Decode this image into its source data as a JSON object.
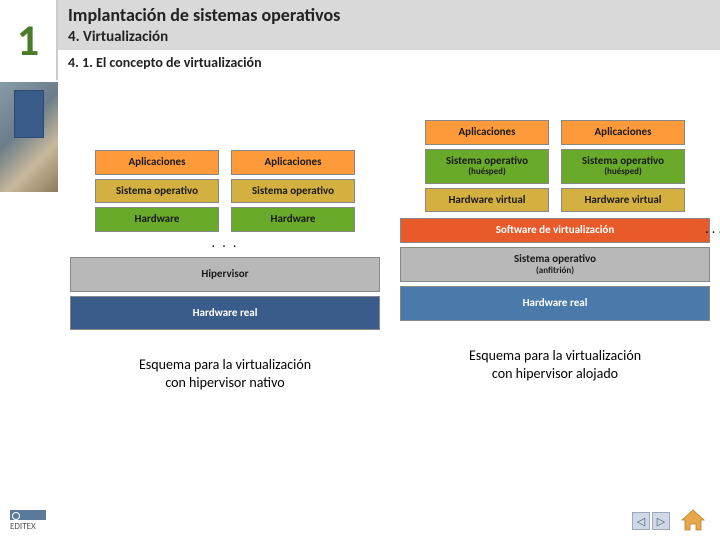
{
  "header": {
    "unit": "1",
    "main": "Implantación de sistemas operativos",
    "sub": "4. Virtualización",
    "section": "4. 1. El concepto de virtualización"
  },
  "colors": {
    "orange": "#ff9a3a",
    "ochre": "#d4b040",
    "green": "#6aaa2a",
    "navy": "#3a5c8a",
    "redorange": "#e85a2a",
    "gray": "#b8b8b8",
    "blue": "#4a7aaa",
    "text_dark": "#1a1a1a",
    "text_white": "#ffffff"
  },
  "left_diagram": {
    "stacks": [
      [
        {
          "label": "Aplicaciones",
          "colorKey": "orange",
          "text": "text_dark"
        },
        {
          "label": "Sistema operativo",
          "colorKey": "ochre",
          "text": "text_dark"
        },
        {
          "label": "Hardware",
          "colorKey": "green",
          "text": "text_dark"
        }
      ],
      [
        {
          "label": "Aplicaciones",
          "colorKey": "orange",
          "text": "text_dark"
        },
        {
          "label": "Sistema operativo",
          "colorKey": "ochre",
          "text": "text_dark"
        },
        {
          "label": "Hardware",
          "colorKey": "green",
          "text": "text_dark"
        }
      ]
    ],
    "dots": ". . .",
    "wide": [
      {
        "label": "Hipervisor",
        "colorKey": "gray",
        "text": "text_dark",
        "tall": true
      },
      {
        "label": "Hardware real",
        "colorKey": "navy",
        "text": "text_white",
        "tall": true
      }
    ],
    "caption_l1": "Esquema para la virtualización",
    "caption_l2": "con hipervisor nativo"
  },
  "right_diagram": {
    "stacks": [
      [
        {
          "label": "Aplicaciones",
          "colorKey": "orange",
          "text": "text_dark"
        },
        {
          "label": "Sistema operativo",
          "sub": "(huésped)",
          "colorKey": "green",
          "text": "text_dark"
        },
        {
          "label": "Hardware virtual",
          "colorKey": "ochre",
          "text": "text_dark"
        }
      ],
      [
        {
          "label": "Aplicaciones",
          "colorKey": "orange",
          "text": "text_dark"
        },
        {
          "label": "Sistema operativo",
          "sub": "(huésped)",
          "colorKey": "green",
          "text": "text_dark"
        },
        {
          "label": "Hardware virtual",
          "colorKey": "ochre",
          "text": "text_dark"
        }
      ]
    ],
    "dots": ". . .",
    "wide": [
      {
        "label": "Software de virtualización",
        "colorKey": "redorange",
        "text": "text_white"
      },
      {
        "label": "Sistema operativo",
        "sub": "(anfitrión)",
        "colorKey": "gray",
        "text": "text_dark"
      },
      {
        "label": "Hardware real",
        "colorKey": "blue",
        "text": "text_white",
        "tall": true
      }
    ],
    "caption_l1": "Esquema para la virtualización",
    "caption_l2": "con hipervisor alojado"
  },
  "footer": {
    "publisher": "EDITEX",
    "nav_prev": "◁",
    "nav_next": "▷"
  }
}
